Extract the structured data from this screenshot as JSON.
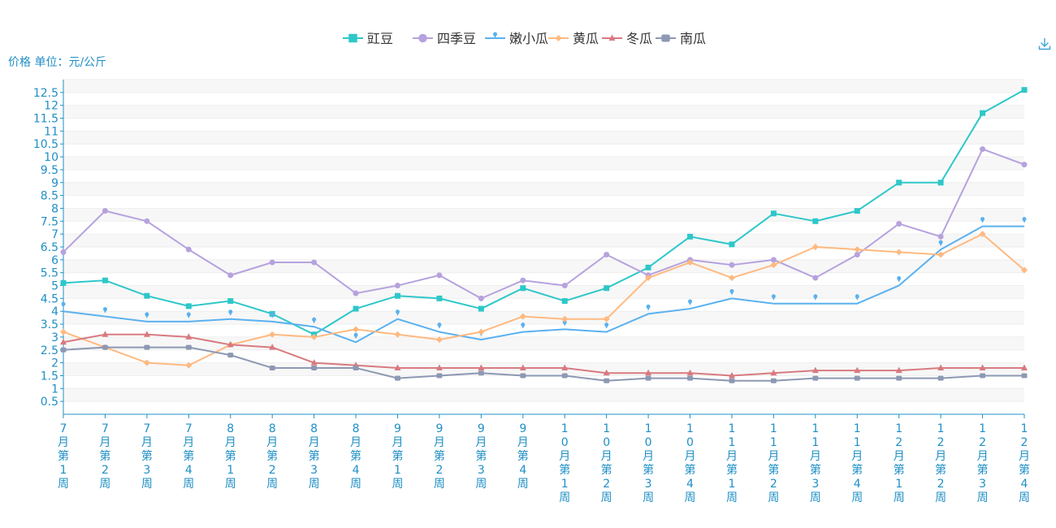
{
  "chart_data": {
    "type": "line",
    "unit_label": "价格 单位：元/公斤",
    "categories": [
      "7月第1周",
      "7月第2周",
      "7月第3周",
      "7月第4周",
      "8月第1周",
      "8月第2周",
      "8月第3周",
      "8月第4周",
      "9月第1周",
      "9月第2周",
      "9月第3周",
      "9月第4周",
      "10月第1周",
      "10月第2周",
      "10月第3周",
      "10月第4周",
      "11月第1周",
      "11月第2周",
      "11月第3周",
      "11月第4周",
      "12月第1周",
      "12月第2周",
      "12月第3周",
      "12月第4周"
    ],
    "y_ticks": [
      "0.5",
      "1",
      "1.5",
      "2",
      "2.5",
      "3",
      "3.5",
      "4",
      "4.5",
      "5",
      "5.5",
      "6",
      "6.5",
      "7",
      "7.5",
      "8",
      "8.5",
      "9",
      "9.5",
      "10",
      "10.5",
      "11",
      "11.5",
      "12",
      "12.5"
    ],
    "ylim": [
      0,
      13
    ],
    "grid": true,
    "legend_position": "top-center",
    "series": [
      {
        "name": "豇豆",
        "color": "#2ec7c9",
        "marker": "square",
        "values": [
          5.1,
          5.2,
          4.6,
          4.2,
          4.4,
          3.9,
          3.1,
          4.1,
          4.6,
          4.5,
          4.1,
          4.9,
          4.4,
          4.9,
          5.7,
          6.9,
          6.6,
          7.8,
          7.5,
          7.9,
          9.0,
          9.0,
          11.7,
          12.6
        ]
      },
      {
        "name": "四季豆",
        "color": "#b6a2de",
        "marker": "circle",
        "values": [
          6.3,
          7.9,
          7.5,
          6.4,
          5.4,
          5.9,
          5.9,
          4.7,
          5.0,
          5.4,
          4.5,
          5.2,
          5.0,
          6.2,
          5.4,
          6.0,
          5.8,
          6.0,
          5.3,
          6.2,
          7.4,
          6.9,
          10.3,
          9.7
        ]
      },
      {
        "name": "嫩小瓜",
        "color": "#5ab1ef",
        "marker": "pin",
        "values": [
          4.0,
          3.8,
          3.6,
          3.6,
          3.7,
          3.6,
          3.4,
          2.8,
          3.7,
          3.2,
          2.9,
          3.2,
          3.3,
          3.2,
          3.9,
          4.1,
          4.5,
          4.3,
          4.3,
          4.3,
          5.0,
          6.4,
          7.3,
          7.3
        ]
      },
      {
        "name": "黄瓜",
        "color": "#ffb980",
        "marker": "diamond",
        "values": [
          3.2,
          2.6,
          2.0,
          1.9,
          2.7,
          3.1,
          3.0,
          3.3,
          3.1,
          2.9,
          3.2,
          3.8,
          3.7,
          3.7,
          5.3,
          5.9,
          5.3,
          5.8,
          6.5,
          6.4,
          6.3,
          6.2,
          7.0,
          5.6
        ]
      },
      {
        "name": "冬瓜",
        "color": "#d87a80",
        "marker": "triangle",
        "values": [
          2.8,
          3.1,
          3.1,
          3.0,
          2.7,
          2.6,
          2.0,
          1.9,
          1.8,
          1.8,
          1.8,
          1.8,
          1.8,
          1.6,
          1.6,
          1.6,
          1.5,
          1.6,
          1.7,
          1.7,
          1.7,
          1.8,
          1.8,
          1.8
        ]
      },
      {
        "name": "南瓜",
        "color": "#8d98b3",
        "marker": "roundRect",
        "values": [
          2.5,
          2.6,
          2.6,
          2.6,
          2.3,
          1.8,
          1.8,
          1.8,
          1.4,
          1.5,
          1.6,
          1.5,
          1.5,
          1.3,
          1.4,
          1.4,
          1.3,
          1.3,
          1.4,
          1.4,
          1.4,
          1.4,
          1.5,
          1.5
        ]
      }
    ]
  },
  "toolbar": {
    "download_icon": "download-icon"
  }
}
